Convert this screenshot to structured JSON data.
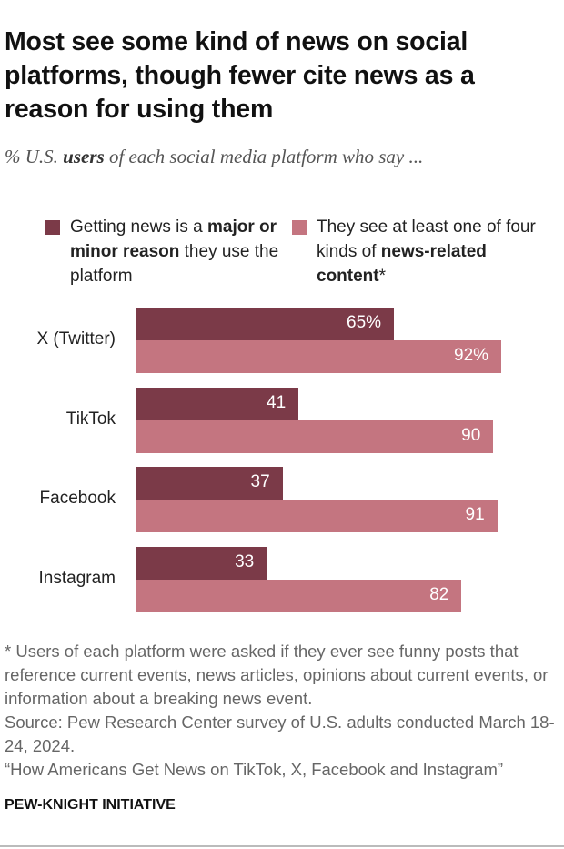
{
  "title": "Most see some kind of news on social platforms, though fewer cite news as a reason for using them",
  "subtitle": {
    "pre": "% U.S. ",
    "bold": "users",
    "post": " of each social media platform who say ..."
  },
  "legend": [
    {
      "color": "#7b3a48",
      "pre": "Getting news is a ",
      "bold": "major or minor reason",
      "post": " they use the platform"
    },
    {
      "color": "#c47580",
      "pre": "They see at least one of four kinds of ",
      "bold": "news-related content",
      "post": "*"
    }
  ],
  "chart_data": {
    "type": "bar",
    "orientation": "horizontal",
    "xlim": [
      0,
      100
    ],
    "categories": [
      "X (Twitter)",
      "TikTok",
      "Facebook",
      "Instagram"
    ],
    "series": [
      {
        "name": "Getting news is a major or minor reason they use the platform",
        "color": "#7b3a48",
        "values": [
          65,
          41,
          37,
          33
        ],
        "labels": [
          "65%",
          "41",
          "37",
          "33"
        ]
      },
      {
        "name": "They see at least one of four kinds of news-related content*",
        "color": "#c47580",
        "values": [
          92,
          90,
          91,
          82
        ],
        "labels": [
          "92%",
          "90",
          "91",
          "82"
        ]
      }
    ]
  },
  "notes": [
    "* Users of each platform were asked if they ever see funny posts that reference current events, news articles, opinions about current events, or information about a breaking news event.",
    "Source: Pew Research Center survey of U.S. adults conducted March 18-24, 2024.",
    "“How Americans Get News on TikTok, X, Facebook and Instagram”"
  ],
  "brand": "PEW-KNIGHT INITIATIVE"
}
